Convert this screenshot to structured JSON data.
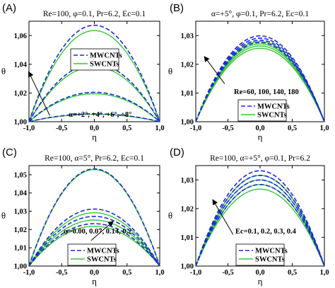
{
  "chart_data": [
    {
      "type": "line",
      "panel_label": "(A)",
      "title": "Re=100, φ=0.1, Pr=6.2, Ec=0.1",
      "xlabel": "η",
      "ylabel": "θ",
      "xlim": [
        -1.0,
        1.0
      ],
      "ylim": [
        1.0,
        1.07
      ],
      "xticks": [
        -1.0,
        -0.5,
        0.0,
        0.5,
        1.0
      ],
      "yticks": [
        1.0,
        1.02,
        1.04,
        1.06
      ],
      "xtick_labels": [
        "-1,0",
        "-0,5",
        "0,0",
        "0,5",
        "1,0"
      ],
      "ytick_labels": [
        "1,00",
        "1,02",
        "1,04",
        "1,06"
      ],
      "legend": {
        "position": "center-right",
        "entries": [
          "MWCNTs",
          "SWCNTs"
        ]
      },
      "annotation": {
        "text": "α=+2°, +4°, +6°, +8°",
        "arrow_from": [
          -0.68,
          1.0042
        ],
        "arrow_to": [
          -1.0,
          1.0343
        ]
      },
      "series": [
        {
          "name": "MWCNTs",
          "style": "dashed",
          "color": "#1a2bd6",
          "x": [
            -1.0,
            0.0,
            1.0
          ],
          "peaks": [
            1.0055,
            1.0205,
            1.0403,
            1.0672
          ]
        },
        {
          "name": "SWCNTs",
          "style": "solid",
          "color": "#35c935",
          "x": [
            -1.0,
            0.0,
            1.0
          ],
          "peaks": [
            1.0052,
            1.0195,
            1.0383,
            1.0635
          ]
        }
      ]
    },
    {
      "type": "line",
      "panel_label": "(B)",
      "title": "α=+5°, φ=0.1, Pr=6.2, Ec=0.1",
      "xlabel": "η",
      "ylabel": "θ",
      "xlim": [
        -1.0,
        1.0
      ],
      "ylim": [
        1.0,
        1.035
      ],
      "xticks": [
        -1.0,
        -0.5,
        0.0,
        0.5,
        1.0
      ],
      "yticks": [
        1.0,
        1.01,
        1.02,
        1.03
      ],
      "xtick_labels": [
        "-1,0",
        "-0,5",
        "0,0",
        "0,5",
        "1,0"
      ],
      "ytick_labels": [
        "1,00",
        "1,01",
        "1,02",
        "1,03"
      ],
      "legend": {
        "position": "center-right",
        "entries": [
          "MWCNTs",
          "SWCNTs"
        ]
      },
      "annotation": {
        "text": "Re=60, 100, 140, 180",
        "arrow_from": [
          -0.55,
          1.0132
        ],
        "arrow_to": [
          -0.86,
          1.0225
        ]
      },
      "series": [
        {
          "name": "MWCNTs",
          "style": "dashed",
          "color": "#1a2bd6",
          "x": [
            -1.0,
            0.0,
            1.0
          ],
          "peaks": [
            1.0276,
            1.0284,
            1.0291,
            1.0299
          ]
        },
        {
          "name": "SWCNTs",
          "style": "solid",
          "color": "#35c935",
          "x": [
            -1.0,
            0.0,
            1.0
          ],
          "peaks": [
            1.0256,
            1.0264,
            1.0271,
            1.0279
          ]
        }
      ]
    },
    {
      "type": "line",
      "panel_label": "(C)",
      "title": "Re=100, α=5°, Pr=6.2, Ec=0.1",
      "xlabel": "η",
      "ylabel": "θ",
      "xlim": [
        -1.0,
        1.0
      ],
      "ylim": [
        1.0,
        1.055
      ],
      "xticks": [
        -1.0,
        -0.5,
        0.0,
        0.5,
        1.0
      ],
      "yticks": [
        1.0,
        1.01,
        1.02,
        1.03,
        1.04,
        1.05
      ],
      "xtick_labels": [
        "-1,0",
        "-0,5",
        "0,0",
        "0,5",
        "1,0"
      ],
      "ytick_labels": [
        "1,00",
        "1,01",
        "1,02",
        "1,03",
        "1,04",
        "1,05"
      ],
      "legend": {
        "position": "bottom-center",
        "entries": [
          "MWCNTs",
          "SWCNTs"
        ]
      },
      "annotation": {
        "text": "φ=0.00, 0.07, 0.14, 0.2",
        "arrow_from": [
          -0.05,
          1.014
        ],
        "arrow_to": [
          0.28,
          1.0243
        ]
      },
      "series": [
        {
          "name": "MWCNTs",
          "style": "dashed",
          "color": "#1a2bd6",
          "x": [
            -1.0,
            0.0,
            1.0
          ],
          "peaks": [
            1.0532,
            1.0312,
            1.0272,
            1.0232
          ]
        },
        {
          "name": "SWCNTs",
          "style": "solid",
          "color": "#35c935",
          "x": [
            -1.0,
            0.0,
            1.0
          ],
          "peaks": [
            1.0528,
            1.0292,
            1.0252,
            1.0218
          ]
        }
      ]
    },
    {
      "type": "line",
      "panel_label": "(D)",
      "title": "Re=100, α=+5°, φ=0.1, Pr=6.2",
      "xlabel": "η",
      "ylabel": "θ",
      "xlim": [
        -1.0,
        1.0
      ],
      "ylim": [
        1.0,
        1.035
      ],
      "xticks": [
        -1.0,
        -0.5,
        0.0,
        0.5,
        1.0
      ],
      "yticks": [
        1.0,
        1.01,
        1.02,
        1.03
      ],
      "xtick_labels": [
        "-1,0",
        "-0,5",
        "0,0",
        "0,5",
        "1,0"
      ],
      "ytick_labels": [
        "1,00",
        "1,01",
        "1,02",
        "1,03"
      ],
      "legend": {
        "position": "bottom-center",
        "entries": [
          "MWCNTs",
          "SWCNTs"
        ]
      },
      "annotation": {
        "text": "Ec=0.1, 0.2, 0.3, 0.4",
        "arrow_from": [
          -0.42,
          1.011
        ],
        "arrow_to": [
          -0.73,
          1.0229
        ]
      },
      "series": [
        {
          "name": "MWCNTs",
          "style": "dashed",
          "color": "#1a2bd6",
          "x": [
            -1.0,
            0.0,
            1.0
          ],
          "peaks": [
            1.0284,
            1.03,
            1.0316,
            1.0332
          ]
        },
        {
          "name": "SWCNTs",
          "style": "solid",
          "color": "#35c935",
          "x": [
            -1.0,
            0.0,
            1.0
          ],
          "peaks": [
            1.0268,
            1.0284,
            1.03,
            1.0316
          ]
        }
      ]
    }
  ]
}
